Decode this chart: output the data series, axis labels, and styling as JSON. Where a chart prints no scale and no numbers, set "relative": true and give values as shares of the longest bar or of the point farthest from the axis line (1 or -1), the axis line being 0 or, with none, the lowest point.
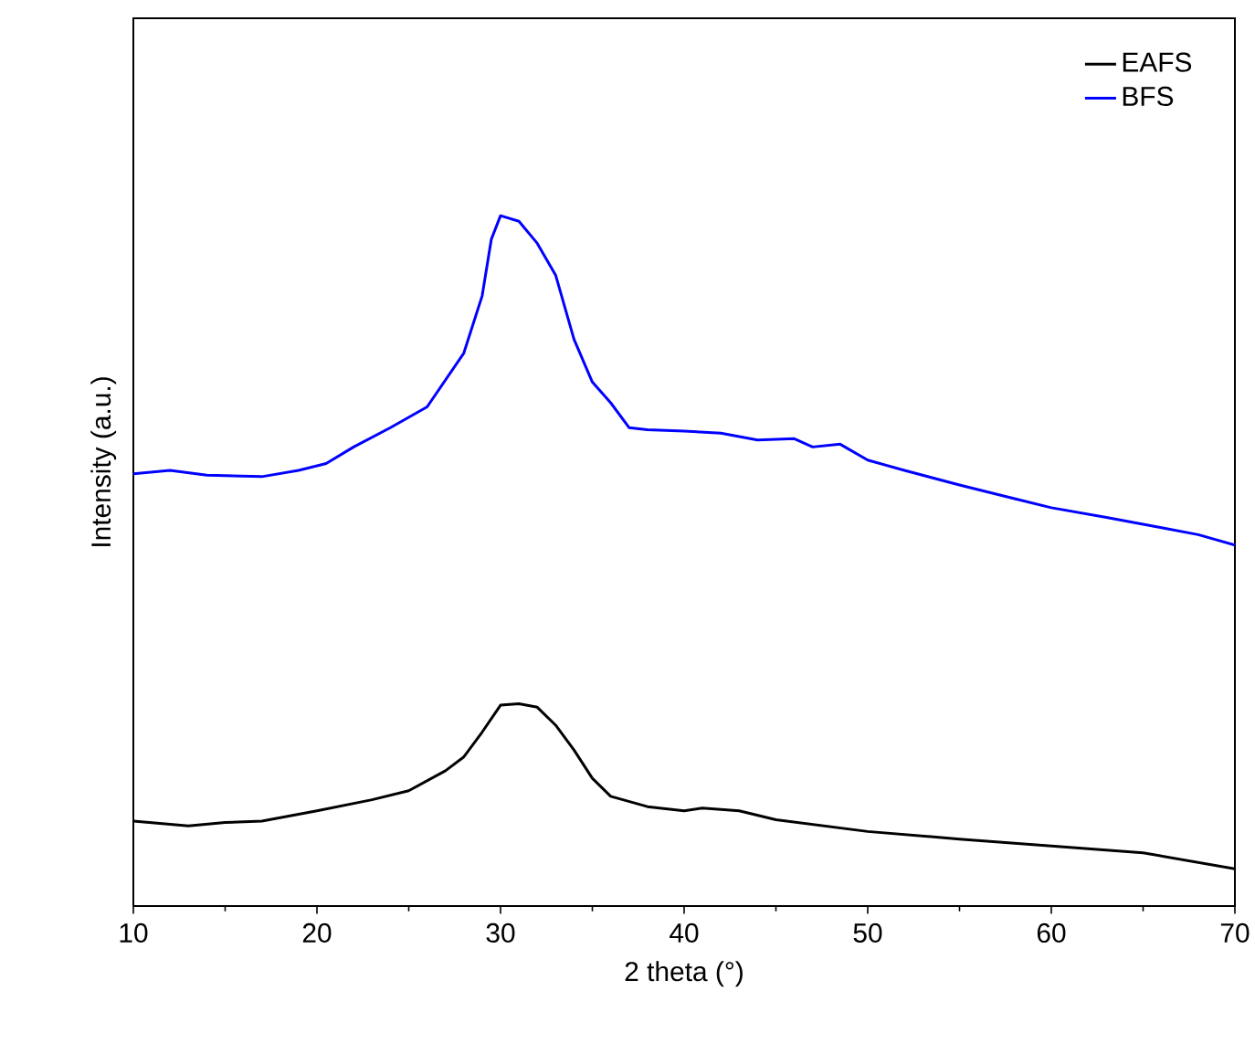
{
  "chart_data": {
    "type": "line",
    "xlabel": "2 theta (°)",
    "ylabel": "Intensity (a.u.)",
    "relative": true,
    "xlim": [
      10,
      70
    ],
    "xticks": [
      10,
      20,
      30,
      40,
      50,
      60,
      70
    ],
    "legend": "top right",
    "marker": "none",
    "line_style": "solid",
    "grid": false,
    "tick_labels": "x",
    "series": [
      {
        "name": "EAFS",
        "color": "#000000",
        "x": [
          10,
          13,
          15,
          17,
          20,
          23,
          25,
          27,
          28,
          29,
          30,
          31,
          32,
          33,
          34,
          35,
          36,
          38,
          40,
          41,
          43,
          45,
          50,
          55,
          60,
          65,
          70
        ],
        "values": [
          0.123,
          0.116,
          0.121,
          0.123,
          0.138,
          0.154,
          0.167,
          0.196,
          0.216,
          0.252,
          0.291,
          0.293,
          0.288,
          0.262,
          0.226,
          0.185,
          0.159,
          0.144,
          0.138,
          0.142,
          0.138,
          0.125,
          0.108,
          0.097,
          0.087,
          0.077,
          0.054
        ]
      },
      {
        "name": "BFS",
        "color": "#0000ff",
        "x": [
          10,
          12,
          14,
          17,
          19,
          20.5,
          22,
          24,
          26,
          28,
          29,
          29.5,
          30,
          31,
          32,
          33,
          34,
          35,
          36,
          37,
          38,
          40,
          42,
          44,
          46,
          47,
          48.5,
          50,
          52,
          55,
          58,
          60,
          63,
          66,
          68,
          70
        ],
        "values": [
          0.626,
          0.631,
          0.624,
          0.622,
          0.631,
          0.641,
          0.665,
          0.693,
          0.723,
          0.801,
          0.884,
          0.966,
          1.0,
          0.992,
          0.96,
          0.914,
          0.821,
          0.759,
          0.729,
          0.693,
          0.69,
          0.688,
          0.685,
          0.675,
          0.677,
          0.665,
          0.669,
          0.646,
          0.631,
          0.61,
          0.59,
          0.577,
          0.563,
          0.548,
          0.538,
          0.523
        ]
      }
    ]
  }
}
